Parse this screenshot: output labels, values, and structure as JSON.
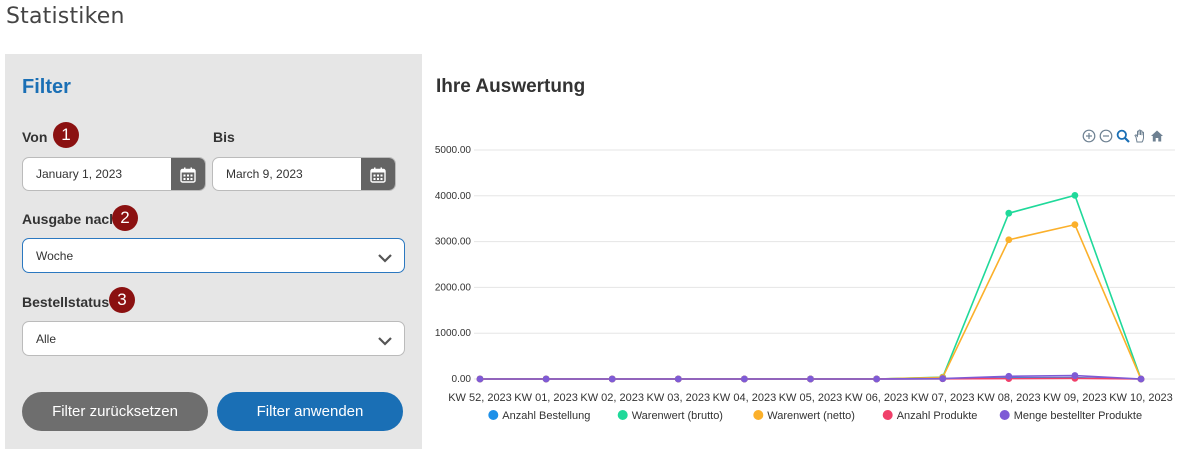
{
  "page_title": "Statistiken",
  "filter": {
    "title": "Filter",
    "von_label": "Von",
    "von_value": "January 1, 2023",
    "bis_label": "Bis",
    "bis_value": "March 9, 2023",
    "ausgabe_label": "Ausgabe nach",
    "ausgabe_value": "Woche",
    "status_label": "Bestellstatus",
    "status_value": "Alle",
    "badge1": "1",
    "badge2": "2",
    "badge3": "3",
    "reset_label": "Filter zurücksetzen",
    "apply_label": "Filter anwenden"
  },
  "chart_title": "Ihre Auswertung",
  "toolbar_icons": [
    "zoom-in-icon",
    "zoom-out-icon",
    "zoom-select-icon",
    "pan-hand-icon",
    "home-reset-icon"
  ],
  "chart_data": {
    "type": "line",
    "categories": [
      "KW 52, 2023",
      "KW 01, 2023",
      "KW 02, 2023",
      "KW 03, 2023",
      "KW 04, 2023",
      "KW 05, 2023",
      "KW 06, 2023",
      "KW 07, 2023",
      "KW 08, 2023",
      "KW 09, 2023",
      "KW 10, 2023"
    ],
    "y_ticks": [
      "0.00",
      "1000.00",
      "2000.00",
      "3000.00",
      "4000.00",
      "5000.00"
    ],
    "ylim": [
      0,
      5000
    ],
    "grid": true,
    "legend_position": "bottom",
    "series": [
      {
        "name": "Anzahl Bestellung",
        "color": "#1e90e8",
        "values": [
          0,
          0,
          0,
          0,
          0,
          0,
          0,
          5,
          25,
          30,
          0
        ]
      },
      {
        "name": "Warenwert (brutto)",
        "color": "#1fd99a",
        "values": [
          0,
          0,
          0,
          0,
          0,
          0,
          0,
          40,
          3620,
          4010,
          0
        ]
      },
      {
        "name": "Warenwert (netto)",
        "color": "#fbb02b",
        "values": [
          0,
          0,
          0,
          0,
          0,
          0,
          0,
          35,
          3040,
          3370,
          0
        ]
      },
      {
        "name": "Anzahl Produkte",
        "color": "#f0406a",
        "values": [
          0,
          0,
          0,
          0,
          0,
          0,
          0,
          5,
          10,
          15,
          0
        ]
      },
      {
        "name": "Menge bestellter Produkte",
        "color": "#7e5bd6",
        "values": [
          0,
          0,
          0,
          0,
          0,
          0,
          0,
          10,
          60,
          75,
          0
        ]
      }
    ]
  }
}
